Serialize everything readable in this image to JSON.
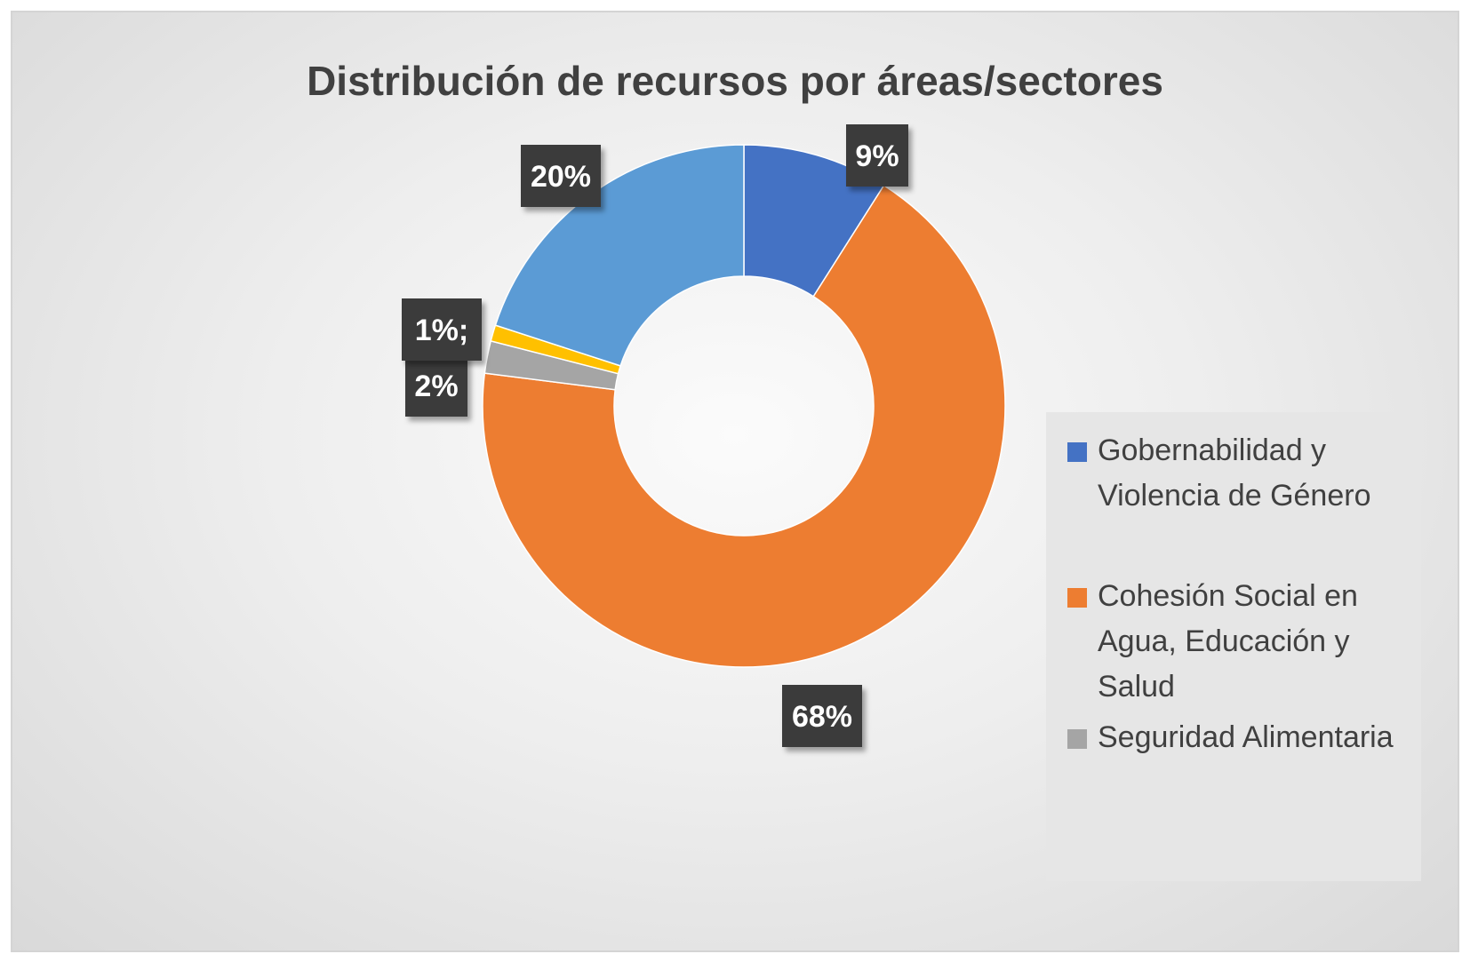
{
  "chart_data": {
    "type": "pie",
    "donut": true,
    "title": "Distribución de recursos por áreas/sectores",
    "categories": [
      "Gobernabilidad y Violencia de Género",
      "Cohesión Social en Agua, Educación y Salud",
      "Seguridad Alimentaria",
      "",
      ""
    ],
    "values": [
      9,
      68,
      2,
      1,
      20
    ],
    "data_labels": [
      "9%",
      "68%",
      "2%",
      "1%;",
      "20%"
    ],
    "colors": [
      "#4472C4",
      "#ED7D31",
      "#A5A5A5",
      "#FFC000",
      "#5B9BD5"
    ],
    "legend": {
      "position": "right",
      "entries": [
        {
          "label": "Gobernabilidad y Violencia de Género",
          "color": "#4472C4"
        },
        {
          "label": "Cohesión Social en Agua, Educación y Salud",
          "color": "#ED7D31"
        },
        {
          "label": "Seguridad Alimentaria",
          "color": "#A5A5A5"
        }
      ]
    }
  }
}
